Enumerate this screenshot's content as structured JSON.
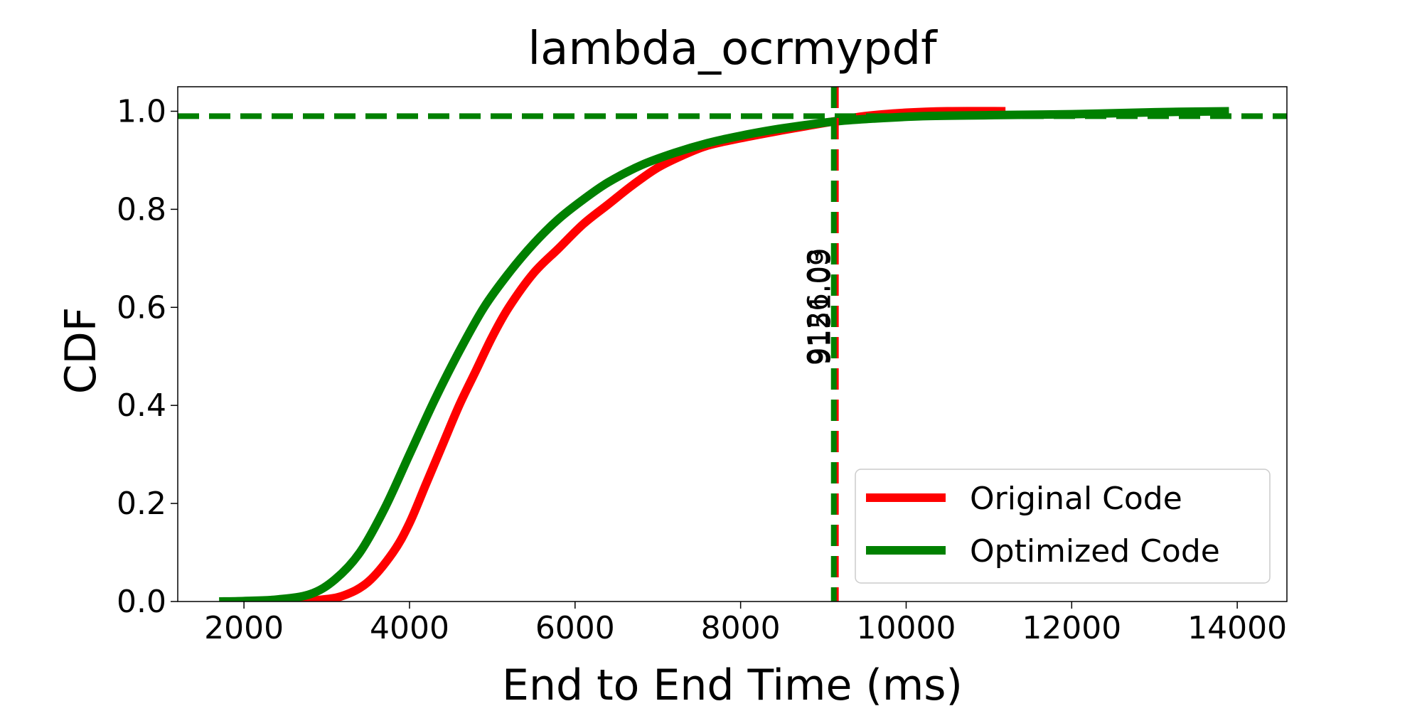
{
  "chart_data": {
    "type": "line",
    "title": "lambda_ocrmypdf",
    "xlabel": "End to End Time (ms)",
    "ylabel": "CDF",
    "xlim": [
      1200,
      14600
    ],
    "ylim": [
      0,
      1.05
    ],
    "xticks": [
      2000,
      4000,
      6000,
      8000,
      10000,
      12000,
      14000
    ],
    "yticks": [
      0.0,
      0.2,
      0.4,
      0.6,
      0.8,
      1.0
    ],
    "xtick_labels": [
      "2000",
      "4000",
      "6000",
      "8000",
      "10000",
      "12000",
      "14000"
    ],
    "ytick_labels": [
      "0.0",
      "0.2",
      "0.4",
      "0.6",
      "0.8",
      "1.0"
    ],
    "grid": false,
    "legend_position": "lower-right",
    "series": [
      {
        "name": "Original Code",
        "color": "#ff0000",
        "x": [
          2600,
          2900,
          3200,
          3500,
          3800,
          4000,
          4200,
          4400,
          4600,
          4800,
          5000,
          5200,
          5500,
          5800,
          6100,
          6400,
          6700,
          7000,
          7300,
          7600,
          8000,
          8400,
          8800,
          9150,
          9500,
          10000,
          10500,
          11200
        ],
        "y": [
          0.0,
          0.003,
          0.012,
          0.04,
          0.1,
          0.16,
          0.24,
          0.32,
          0.4,
          0.47,
          0.54,
          0.6,
          0.67,
          0.72,
          0.77,
          0.81,
          0.85,
          0.885,
          0.91,
          0.93,
          0.945,
          0.958,
          0.97,
          0.98,
          0.99,
          0.997,
          1.0,
          1.0
        ]
      },
      {
        "name": "Optimized Code",
        "color": "#008000",
        "x": [
          1700,
          2000,
          2400,
          2800,
          3100,
          3400,
          3700,
          4000,
          4300,
          4600,
          4900,
          5200,
          5500,
          5800,
          6100,
          6400,
          6800,
          7200,
          7600,
          8000,
          8500,
          9126,
          9600,
          10200,
          11000,
          12000,
          13000,
          13900
        ],
        "y": [
          0.0,
          0.001,
          0.004,
          0.015,
          0.045,
          0.1,
          0.19,
          0.3,
          0.41,
          0.51,
          0.6,
          0.67,
          0.73,
          0.78,
          0.82,
          0.855,
          0.89,
          0.915,
          0.935,
          0.95,
          0.965,
          0.979,
          0.985,
          0.99,
          0.992,
          0.994,
          0.998,
          1.0
        ]
      }
    ],
    "reference_lines": {
      "horizontal_y": 0.99,
      "horizontal_color": "#008000",
      "vertical": [
        {
          "x": 9151.09,
          "color": "#ff0000",
          "label": "9151.09"
        },
        {
          "x": 9126.03,
          "color": "#008000",
          "label": "9126.03"
        }
      ]
    }
  }
}
